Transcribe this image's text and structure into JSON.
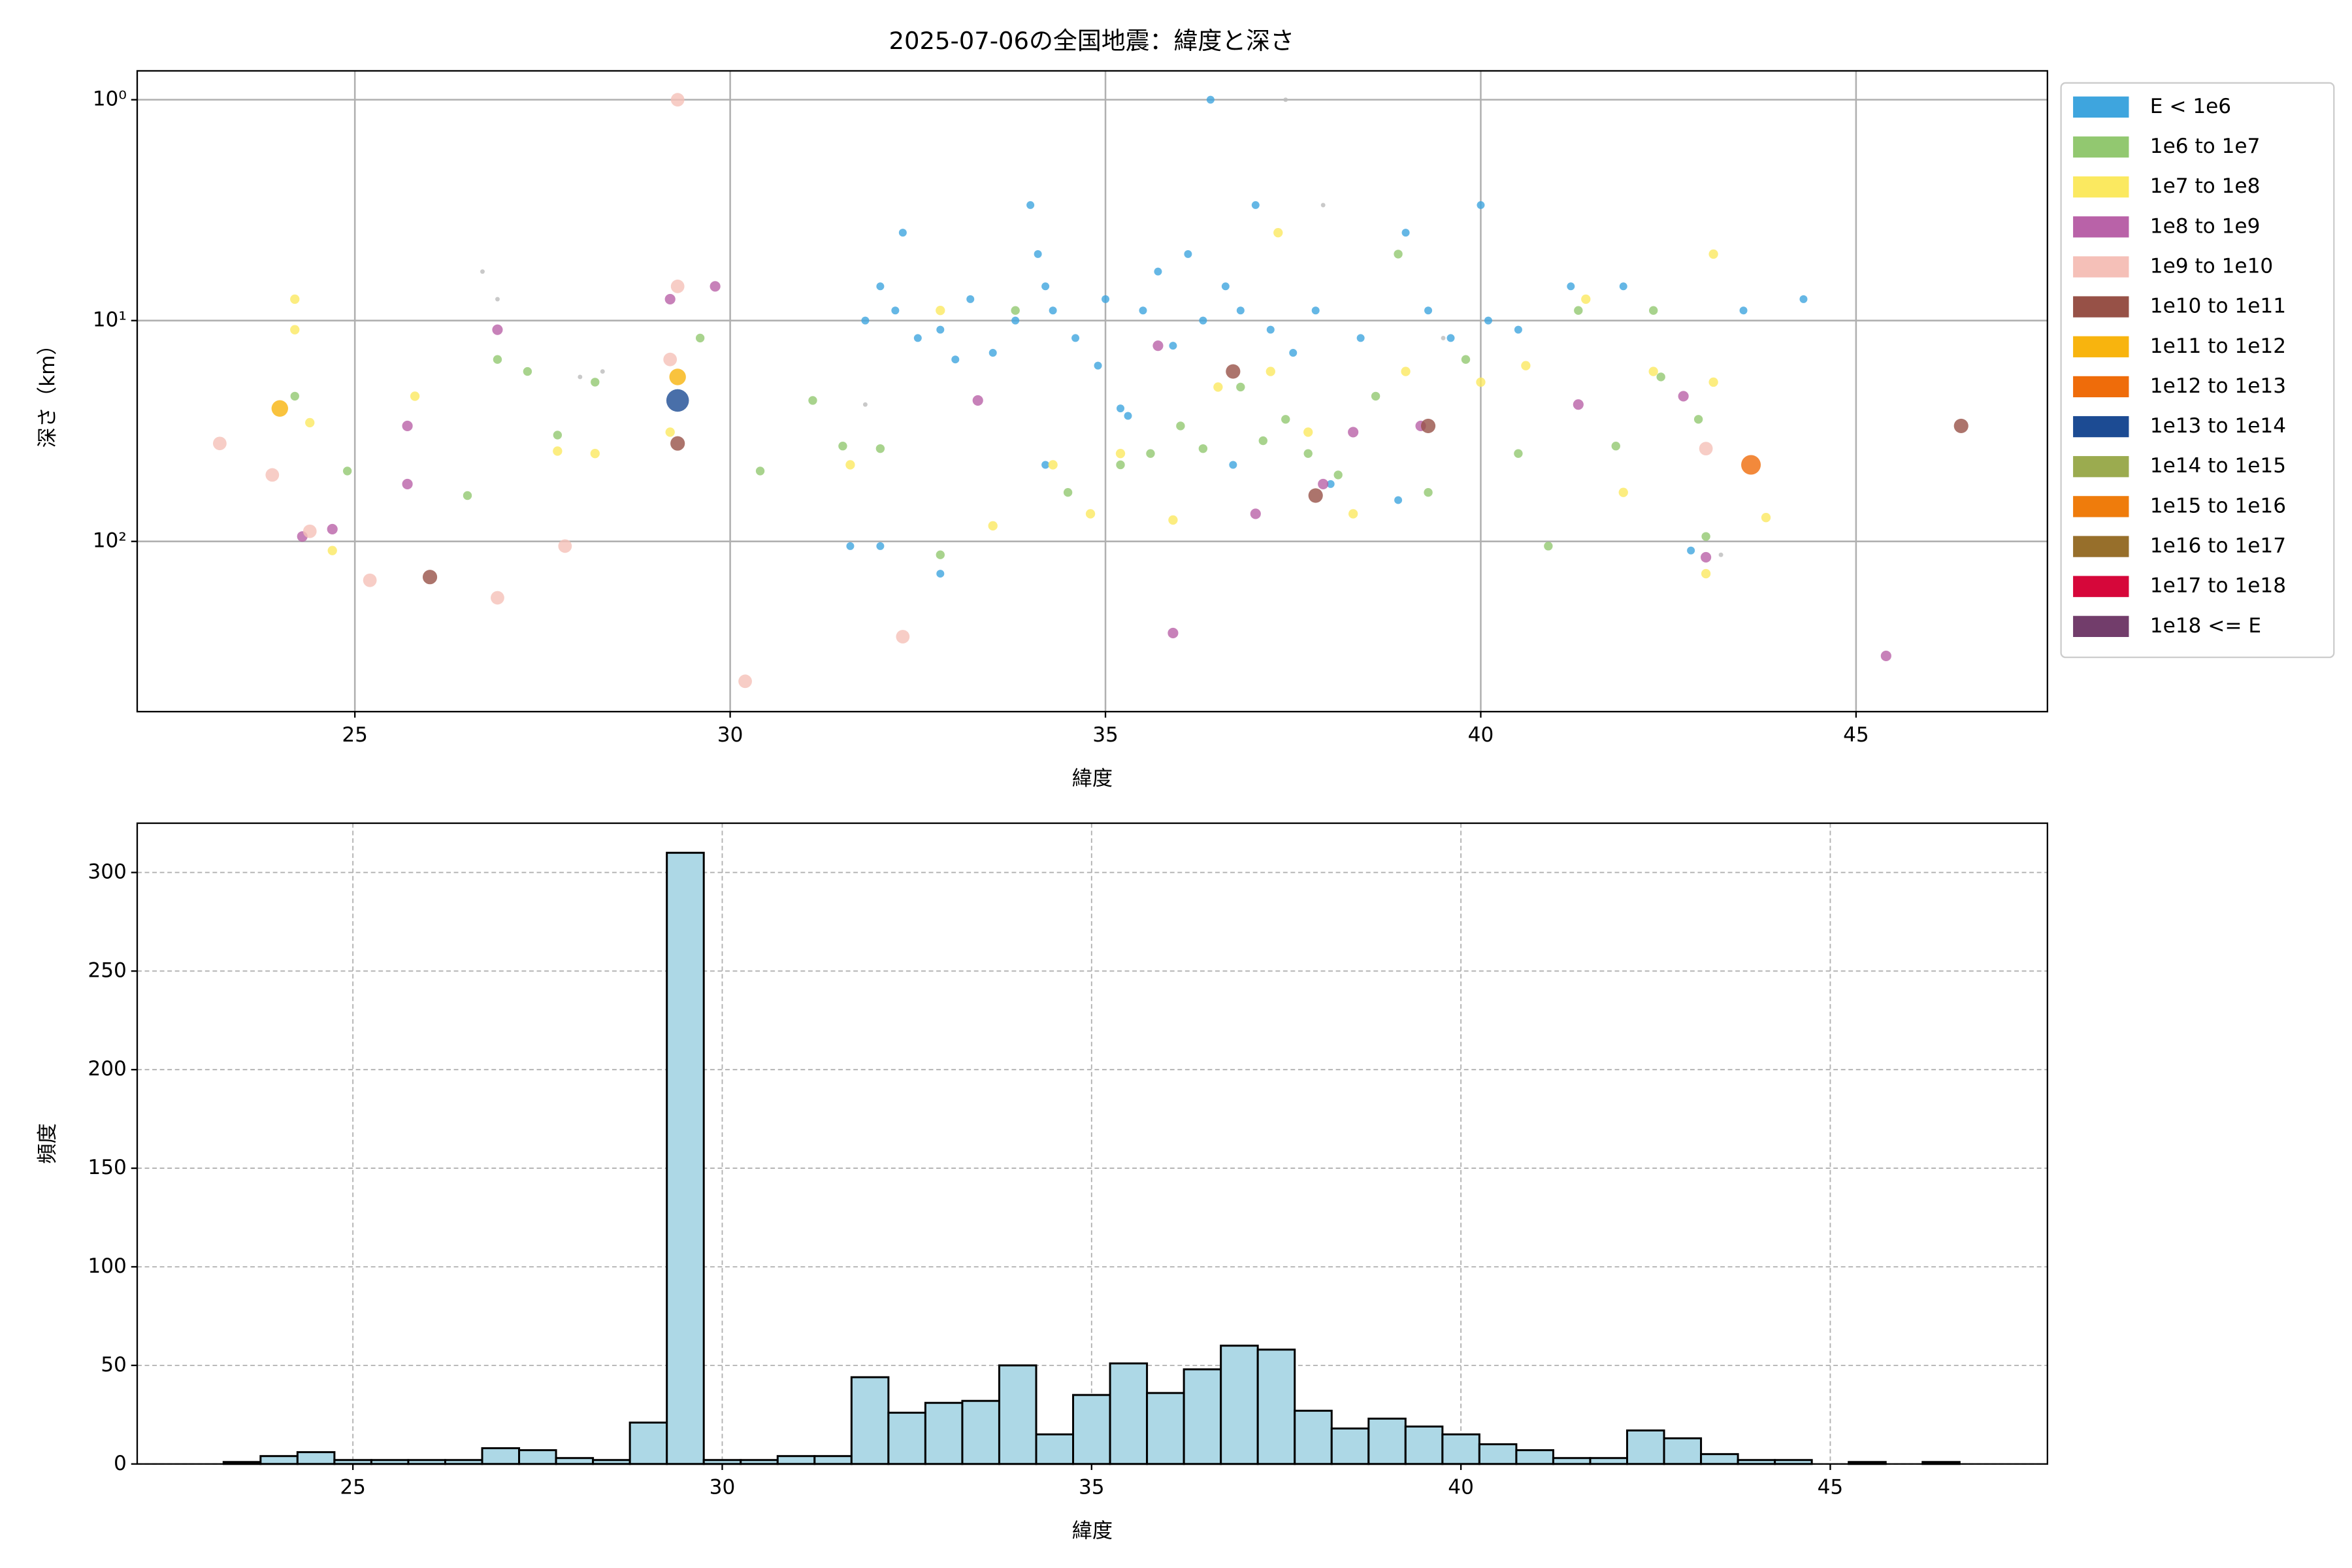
{
  "chart_data": [
    {
      "type": "scatter",
      "title": "2025-07-06の全国地震：緯度と深さ",
      "xlabel": "緯度",
      "ylabel": "深さ（km）",
      "xlim": [
        22.1,
        47.55
      ],
      "xticks": [
        25,
        30,
        35,
        40,
        45
      ],
      "yscale": "log",
      "ylim": [
        590,
        0.74
      ],
      "yticks": [
        {
          "value": 1,
          "label": "10⁰"
        },
        {
          "value": 10,
          "label": "10¹"
        },
        {
          "value": 100,
          "label": "10²"
        }
      ],
      "grid": true,
      "legend": "right",
      "series": [
        {
          "color": "#bbbbbb",
          "size": 1.5,
          "x": [
            26.7,
            26.9,
            28,
            28.3,
            37.4,
            37.9,
            39.5,
            43.2,
            31.8
          ],
          "y": [
            6,
            8,
            18,
            17,
            1,
            3,
            12,
            115,
            24
          ]
        },
        {
          "name": "E < 1e6",
          "color": "#3ea5de",
          "size": 2.6,
          "x": [
            31.8,
            32,
            32.2,
            32.3,
            32.5,
            32.8,
            33,
            33.2,
            33.5,
            33.8,
            34,
            34.1,
            34.2,
            34.3,
            34.6,
            34.9,
            35,
            35.2,
            35.5,
            35.7,
            35.9,
            36.1,
            36.3,
            36.4,
            36.6,
            36.8,
            37,
            37.2,
            37.5,
            37.8,
            38,
            38.4,
            38.9,
            39,
            39.3,
            39.6,
            40,
            40.1,
            40.5,
            41.2,
            41.9,
            42.8,
            43.5,
            44.3,
            32.8,
            31.6,
            32,
            34.2,
            35.3,
            36.7
          ],
          "y": [
            10,
            7,
            9,
            4,
            12,
            11,
            15,
            8,
            14,
            10,
            3,
            5,
            7,
            9,
            12,
            16,
            8,
            25,
            9,
            6,
            13,
            5,
            10,
            1,
            7,
            9,
            3,
            11,
            14,
            9,
            55,
            12,
            65,
            4,
            9,
            12,
            3,
            10,
            11,
            7,
            7,
            110,
            9,
            8,
            140,
            105,
            105,
            45,
            27,
            45
          ]
        },
        {
          "name": "1e6 to 1e7",
          "color": "#92c870",
          "size": 2.9,
          "x": [
            24.2,
            24.9,
            26.5,
            26.9,
            27.3,
            27.7,
            28.2,
            29.6,
            30.4,
            31.1,
            31.5,
            32,
            32.8,
            33.8,
            34.5,
            35.2,
            35.6,
            36,
            36.3,
            36.8,
            37.1,
            37.4,
            37.7,
            38.1,
            38.6,
            38.9,
            39.3,
            39.8,
            40.5,
            40.9,
            41.3,
            41.8,
            42.3,
            42.4,
            42.9,
            43
          ],
          "y": [
            22,
            48,
            62,
            15,
            17,
            33,
            19,
            12,
            48,
            23,
            37,
            38,
            115,
            9,
            60,
            45,
            40,
            30,
            38,
            20,
            35,
            28,
            40,
            50,
            22,
            5,
            60,
            15,
            40,
            105,
            9,
            37,
            9,
            18,
            28,
            95
          ]
        },
        {
          "name": "1e7 to 1e8",
          "color": "#fbe960",
          "size": 3.1,
          "x": [
            24.2,
            24.2,
            24.4,
            24.7,
            25.8,
            27.7,
            28.2,
            31.6,
            32.8,
            33.5,
            34.3,
            34.8,
            35.2,
            35.9,
            36.5,
            37.2,
            37.3,
            37.7,
            38.3,
            39,
            40,
            40.6,
            41.4,
            41.9,
            42.3,
            43,
            43.1,
            43.1,
            43.8,
            29.2
          ],
          "y": [
            8,
            11,
            29,
            110,
            22,
            39,
            40,
            45,
            9,
            85,
            45,
            75,
            40,
            80,
            20,
            17,
            4,
            32,
            75,
            17,
            19,
            16,
            8,
            60,
            17,
            140,
            19,
            5,
            78,
            32
          ]
        },
        {
          "name": "1e8 to 1e9",
          "color": "#b962a8",
          "size": 3.5,
          "x": [
            24.3,
            24.7,
            25.7,
            25.7,
            26.9,
            29.2,
            29.8,
            33.3,
            35.7,
            35.9,
            37,
            37.9,
            38.3,
            39.2,
            41.3,
            42.7,
            43,
            45.4
          ],
          "y": [
            95,
            88,
            30,
            55,
            11,
            8,
            7,
            23,
            13,
            260,
            75,
            55,
            32,
            30,
            24,
            22,
            118,
            330
          ]
        },
        {
          "name": "1e9 to 1e10",
          "color": "#f5c0b8",
          "size": 4.5,
          "x": [
            23.2,
            23.9,
            24.4,
            25.2,
            26.9,
            27.8,
            29.3,
            30.2,
            32.3,
            29.2,
            29.3,
            43
          ],
          "y": [
            36,
            50,
            90,
            150,
            180,
            105,
            1,
            430,
            270,
            15,
            7,
            38
          ]
        },
        {
          "name": "1e10 to 1e11",
          "color": "#975147",
          "size": 4.8,
          "x": [
            26,
            29.3,
            36.7,
            37.8,
            39.3,
            46.4
          ],
          "y": [
            145,
            36,
            17,
            62,
            30,
            30
          ]
        },
        {
          "name": "1e11 to 1e12",
          "color": "#f8b40e",
          "size": 5.5,
          "x": [
            24,
            29.3
          ],
          "y": [
            25,
            18
          ]
        },
        {
          "name": "1e12 to 1e13",
          "color": "#ef6c0a",
          "size": 6.5,
          "x": [
            43.6
          ],
          "y": [
            45
          ]
        },
        {
          "name": "1e13 to 1e14",
          "color": "#1c4b93",
          "size": 7.5,
          "x": [
            29.3
          ],
          "y": [
            23
          ]
        },
        {
          "name": "1e14 to 1e15",
          "color": "#9bab4f",
          "size": 8,
          "x": [],
          "y": []
        },
        {
          "name": "1e15 to 1e16",
          "color": "#ef7c0c",
          "size": 8,
          "x": [],
          "y": []
        },
        {
          "name": "1e16 to 1e17",
          "color": "#976f2b",
          "size": 8,
          "x": [],
          "y": []
        },
        {
          "name": "1e17 to 1e18",
          "color": "#d6073a",
          "size": 8,
          "x": [],
          "y": []
        },
        {
          "name": "1e18 <= E",
          "color": "#723d6b",
          "size": 8,
          "x": [],
          "y": []
        }
      ]
    },
    {
      "type": "histogram",
      "xlabel": "緯度",
      "ylabel": "頻度",
      "xlim": [
        22.08,
        47.94
      ],
      "xticks": [
        25,
        30,
        35,
        40,
        45
      ],
      "ylim": [
        0,
        325
      ],
      "yticks": [
        0,
        50,
        100,
        150,
        200,
        250,
        300
      ],
      "grid": true,
      "grid_style": "dashed",
      "color": "#add8e6",
      "edgecolor": "#000000",
      "bins": [
        23.25,
        23.75,
        24.25,
        24.75,
        25.25,
        25.75,
        26.25,
        26.75,
        27.25,
        27.75,
        28.25,
        28.75,
        29.25,
        29.75,
        30.25,
        30.75,
        31.25,
        31.75,
        32.25,
        32.75,
        33.25,
        33.75,
        34.25,
        34.75,
        35.25,
        35.75,
        36.25,
        36.75,
        37.25,
        37.75,
        38.25,
        38.75,
        39.25,
        39.75,
        40.25,
        40.75,
        41.25,
        41.75,
        42.25,
        42.75,
        43.25,
        43.75,
        44.25,
        44.75,
        45.25,
        45.75,
        46.25,
        46.75
      ],
      "values": [
        1,
        4,
        6,
        2,
        2,
        2,
        2,
        8,
        7,
        3,
        2,
        21,
        310,
        2,
        2,
        4,
        4,
        44,
        26,
        31,
        32,
        50,
        15,
        35,
        51,
        36,
        48,
        60,
        58,
        27,
        18,
        23,
        19,
        15,
        10,
        7,
        3,
        3,
        17,
        13,
        5,
        2,
        2,
        0,
        1,
        0,
        1
      ]
    }
  ]
}
